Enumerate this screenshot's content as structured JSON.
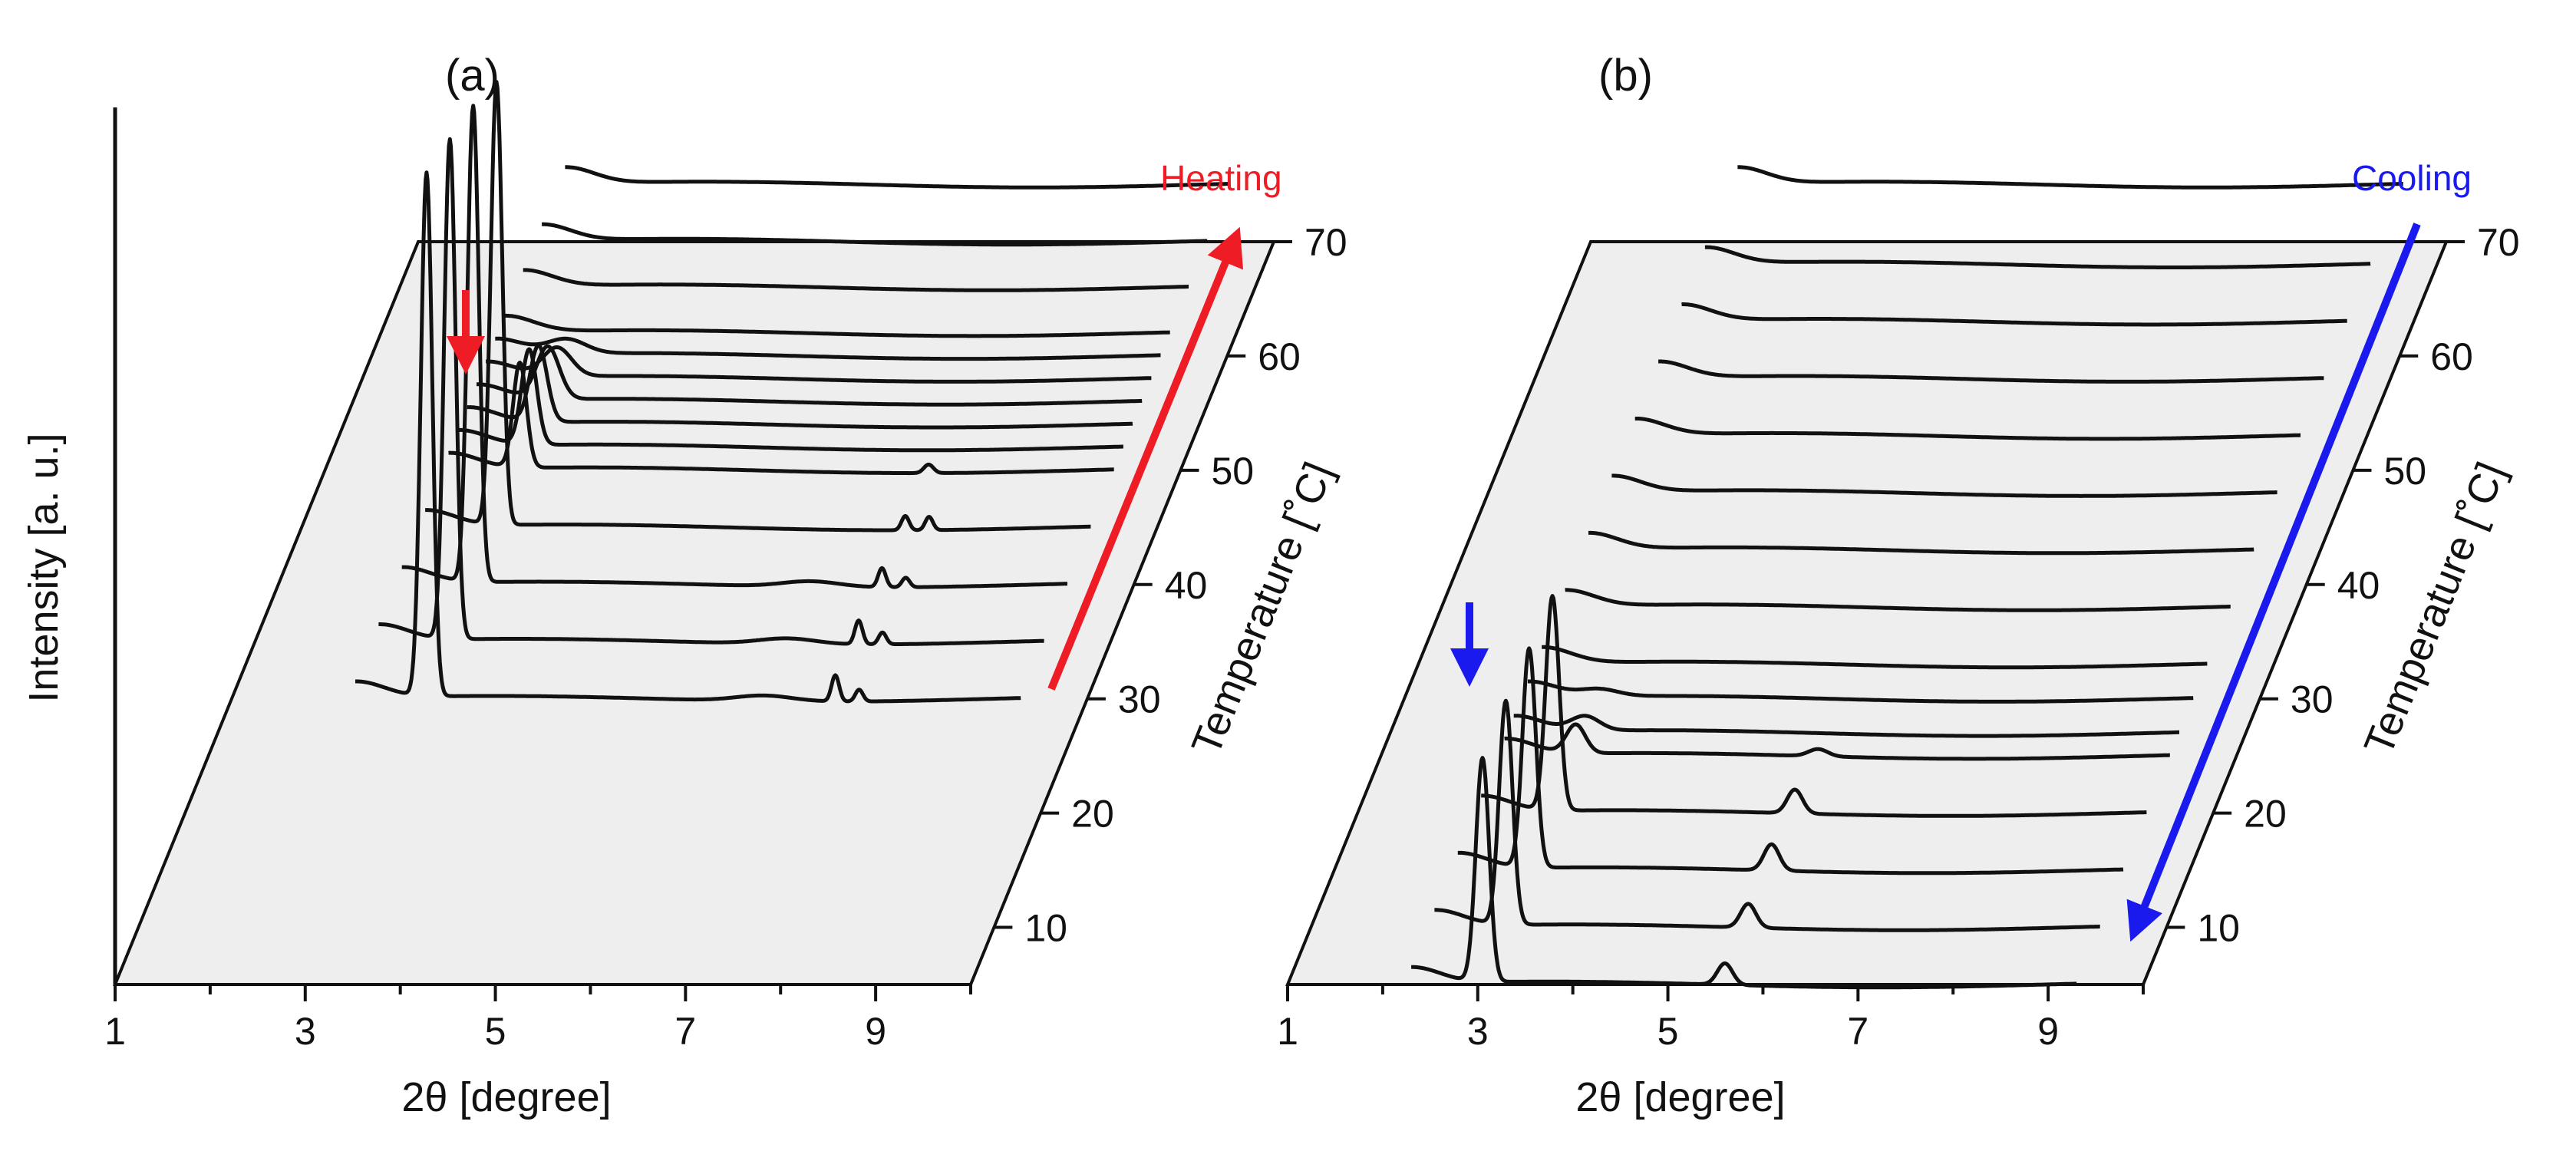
{
  "shared": {
    "ylabel": "Intensity [a. u.]",
    "xlabel": "2θ [degree]",
    "zlabel": "Temperature [˚C]",
    "x_ticks": [
      "1",
      "3",
      "5",
      "7",
      "9"
    ],
    "z_ticks": [
      "10",
      "20",
      "30",
      "40",
      "50",
      "60",
      "70"
    ],
    "line_color": "#111111",
    "floor_color": "#eeeeee"
  },
  "chart_data": [
    {
      "type": "line",
      "title": "(a)",
      "process": "Heating",
      "accent": "#ee1c25",
      "xlabel": "2θ [degree]",
      "ylabel": "Intensity [a. u.]",
      "zlabel": "Temperature [˚C]",
      "xlim": [
        1,
        10
      ],
      "zlim": [
        5,
        70
      ],
      "series": [
        {
          "temperature": 30,
          "peaks": [
            [
              3.05,
              11.0,
              0.06
            ],
            [
              7.35,
              0.55,
              0.04
            ],
            [
              7.6,
              0.25,
              0.04
            ],
            [
              6.6,
              0.12,
              0.3
            ]
          ]
        },
        {
          "temperature": 35,
          "peaks": [
            [
              3.05,
              10.5,
              0.06
            ],
            [
              7.35,
              0.5,
              0.04
            ],
            [
              7.6,
              0.25,
              0.04
            ],
            [
              6.6,
              0.12,
              0.3
            ]
          ]
        },
        {
          "temperature": 40,
          "peaks": [
            [
              3.05,
              10.0,
              0.06
            ],
            [
              7.35,
              0.4,
              0.04
            ],
            [
              7.6,
              0.2,
              0.04
            ],
            [
              6.6,
              0.12,
              0.3
            ]
          ]
        },
        {
          "temperature": 45,
          "peaks": [
            [
              3.05,
              9.3,
              0.06
            ],
            [
              7.35,
              0.3,
              0.04
            ],
            [
              7.6,
              0.28,
              0.04
            ]
          ]
        },
        {
          "temperature": 50,
          "peaks": [
            [
              3.05,
              2.2,
              0.07
            ],
            [
              7.35,
              0.18,
              0.05
            ]
          ]
        },
        {
          "temperature": 52,
          "peaks": [
            [
              3.05,
              2.0,
              0.08
            ]
          ]
        },
        {
          "temperature": 54,
          "peaks": [
            [
              3.05,
              1.6,
              0.09
            ]
          ]
        },
        {
          "temperature": 56,
          "peaks": [
            [
              3.05,
              1.1,
              0.12
            ]
          ]
        },
        {
          "temperature": 58,
          "peaks": [
            [
              3.05,
              0.6,
              0.15
            ]
          ]
        },
        {
          "temperature": 60,
          "peaks": [
            [
              3.05,
              0.3,
              0.2
            ]
          ]
        },
        {
          "temperature": 62,
          "peaks": []
        },
        {
          "temperature": 66,
          "peaks": []
        },
        {
          "temperature": 70,
          "peaks": []
        },
        {
          "temperature": 75,
          "peaks": []
        }
      ]
    },
    {
      "type": "line",
      "title": "(b)",
      "process": "Cooling",
      "accent": "#1a1aee",
      "xlabel": "2θ [degree]",
      "ylabel": "Intensity [a. u.]",
      "zlabel": "Temperature [˚C]",
      "xlim": [
        1,
        10
      ],
      "zlim": [
        5,
        70
      ],
      "series": [
        {
          "temperature": 5,
          "peaks": [
            [
              3.05,
              4.7,
              0.07
            ],
            [
              5.6,
              0.45,
              0.08
            ]
          ]
        },
        {
          "temperature": 10,
          "peaks": [
            [
              3.05,
              4.7,
              0.07
            ],
            [
              5.6,
              0.5,
              0.08
            ]
          ]
        },
        {
          "temperature": 15,
          "peaks": [
            [
              3.05,
              4.6,
              0.07
            ],
            [
              5.6,
              0.55,
              0.08
            ]
          ]
        },
        {
          "temperature": 20,
          "peaks": [
            [
              3.05,
              4.5,
              0.07
            ],
            [
              5.6,
              0.5,
              0.08
            ]
          ]
        },
        {
          "temperature": 25,
          "peaks": [
            [
              3.05,
              0.6,
              0.1
            ],
            [
              5.6,
              0.15,
              0.1
            ]
          ]
        },
        {
          "temperature": 27,
          "peaks": [
            [
              3.05,
              0.3,
              0.15
            ]
          ]
        },
        {
          "temperature": 30,
          "peaks": [
            [
              3.05,
              0.15,
              0.2
            ]
          ]
        },
        {
          "temperature": 33,
          "peaks": []
        },
        {
          "temperature": 38,
          "peaks": []
        },
        {
          "temperature": 43,
          "peaks": []
        },
        {
          "temperature": 48,
          "peaks": []
        },
        {
          "temperature": 53,
          "peaks": []
        },
        {
          "temperature": 58,
          "peaks": []
        },
        {
          "temperature": 63,
          "peaks": []
        },
        {
          "temperature": 68,
          "peaks": []
        },
        {
          "temperature": 75,
          "peaks": []
        }
      ]
    }
  ]
}
